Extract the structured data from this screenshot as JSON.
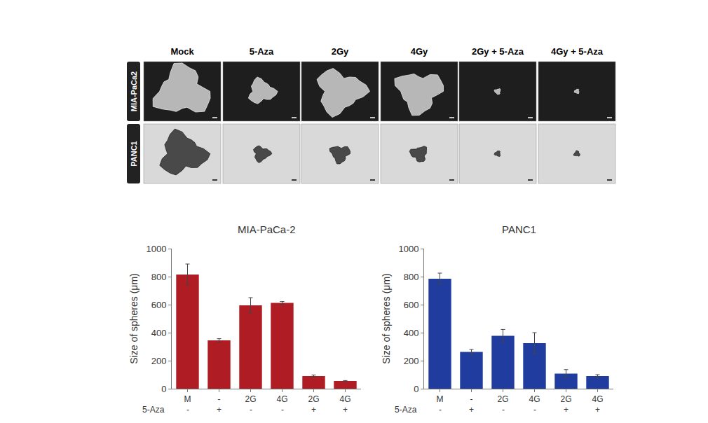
{
  "image_panel": {
    "columns": [
      "Mock",
      "5-Aza",
      "2Gy",
      "4Gy",
      "2Gy + 5-Aza",
      "4Gy + 5-Aza"
    ],
    "rows": [
      "MIA-PaCa2",
      "PANC1"
    ]
  },
  "chart_data": [
    {
      "type": "bar",
      "title": "MIA-PaCa-2",
      "y_label": "Size of spheres (μm)",
      "categories": [
        "M",
        "-",
        "2G",
        "4G",
        "2G",
        "4G"
      ],
      "treatment_row": {
        "label": "5-Aza",
        "marks": [
          "-",
          "+",
          "-",
          "-",
          "+",
          "+"
        ]
      },
      "values": [
        815,
        345,
        595,
        612,
        90,
        55
      ],
      "errors": [
        75,
        12,
        55,
        10,
        8,
        3
      ],
      "color": "#b01c24",
      "ylim": [
        0,
        1000
      ],
      "yticks": [
        0,
        200,
        400,
        600,
        800,
        1000
      ],
      "grid": false
    },
    {
      "type": "bar",
      "title": "PANC1",
      "y_label": "Size of spheres (μm)",
      "categories": [
        "M",
        "-",
        "2G",
        "4G",
        "2G",
        "4G"
      ],
      "treatment_row": {
        "label": "5-Aza",
        "marks": [
          "-",
          "+",
          "-",
          "-",
          "+",
          "+"
        ]
      },
      "values": [
        785,
        262,
        378,
        325,
        108,
        90
      ],
      "errors": [
        40,
        18,
        45,
        75,
        28,
        10
      ],
      "color": "#1f3c9e",
      "ylim": [
        0,
        1000
      ],
      "yticks": [
        0,
        200,
        400,
        600,
        800,
        1000
      ],
      "grid": false
    }
  ]
}
